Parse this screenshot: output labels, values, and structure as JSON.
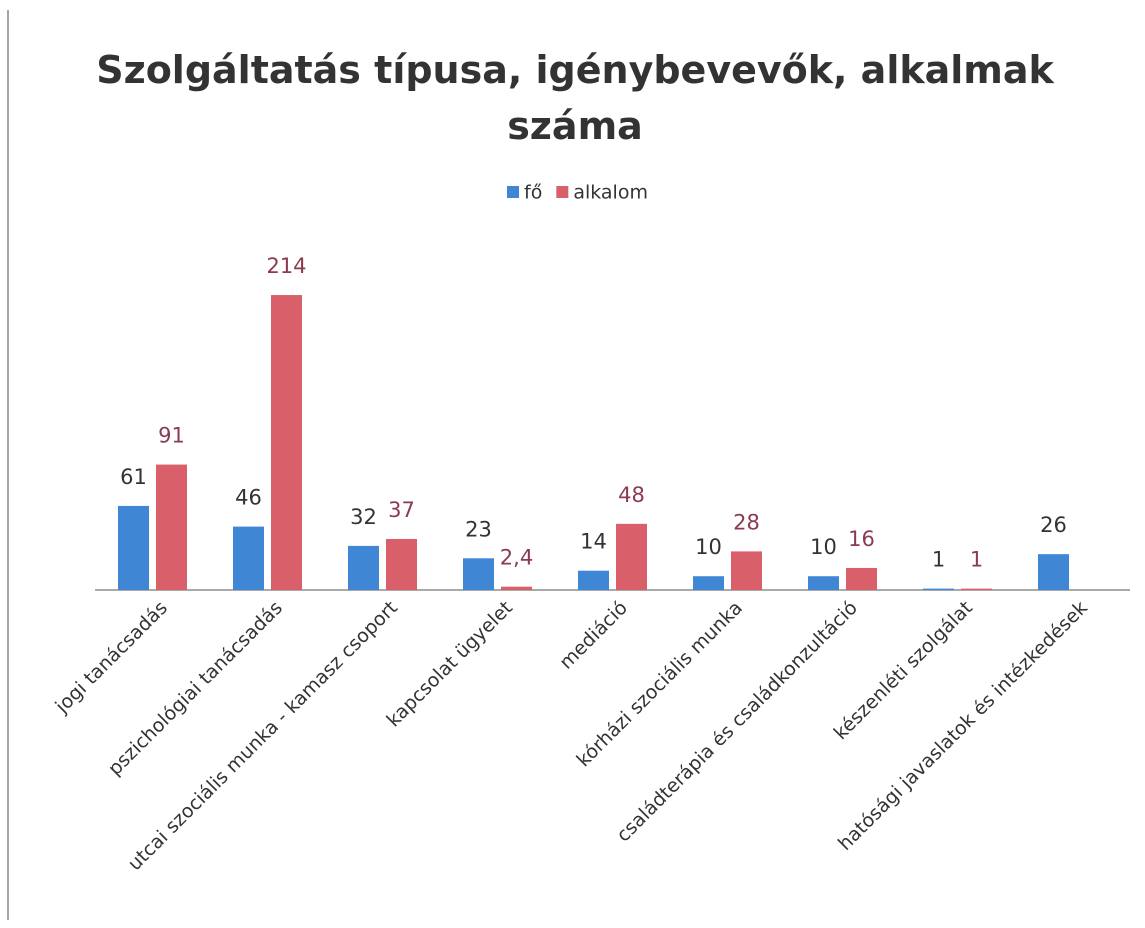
{
  "chart_data": {
    "type": "bar",
    "title": "Szolgáltatás típusa, igénybevevők, alkalmak száma",
    "categories": [
      "jogi tanácsadás",
      "pszichológiai tanácsadás",
      "utcai szociális munka - kamasz csoport",
      "kapcsolat ügyelet",
      "mediáció",
      "kórházi szociális munka",
      "családterápia és családkonzultáció",
      "készenléti szolgálat",
      "hatósági javaslatok és intézkedések"
    ],
    "series": [
      {
        "name": "fő",
        "color": "#3f86d4",
        "values": [
          61,
          46,
          32,
          23,
          14,
          10,
          10,
          1,
          26
        ]
      },
      {
        "name": "alkalom",
        "color": "#d9606b",
        "values": [
          91,
          214,
          37,
          2.4,
          48,
          28,
          16,
          1,
          null
        ],
        "value_labels": [
          "91",
          "214",
          "37",
          "2,4",
          "48",
          "28",
          "16",
          "1",
          null
        ]
      }
    ],
    "ylim": [
      0,
      230
    ]
  }
}
